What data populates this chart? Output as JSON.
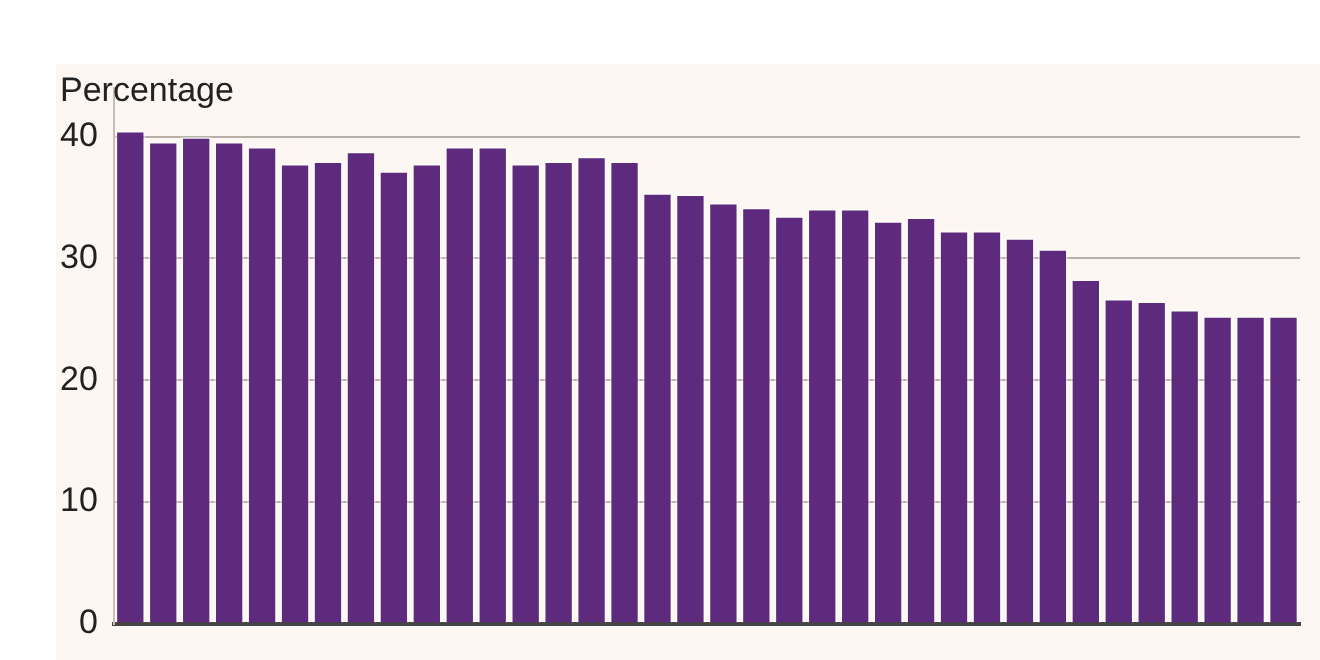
{
  "chart_data": {
    "type": "bar",
    "ylabel": "Percentage",
    "categories": [
      null,
      null,
      null,
      null,
      null,
      null,
      null,
      null,
      null,
      null,
      null,
      null,
      null,
      null,
      null,
      null,
      null,
      null,
      null,
      null,
      null,
      null,
      null,
      null,
      null,
      null,
      null,
      null,
      null,
      null,
      null,
      null,
      null,
      null,
      null,
      null
    ],
    "values": [
      40.5,
      39.6,
      40.0,
      39.6,
      39.2,
      37.8,
      38.0,
      38.8,
      37.2,
      37.8,
      39.2,
      39.2,
      37.8,
      38.0,
      38.4,
      38.0,
      35.4,
      35.3,
      34.6,
      34.2,
      33.5,
      34.1,
      34.1,
      33.1,
      33.4,
      32.3,
      32.3,
      31.7,
      30.8,
      28.3,
      26.7,
      26.5,
      25.8,
      25.3,
      25.3,
      25.3
    ],
    "color": "#5e2a7e",
    "ylim": [
      0,
      44
    ],
    "yticks": [
      0,
      10,
      20,
      30,
      40
    ],
    "grid": "y",
    "legend": false,
    "tick_labels": "y"
  }
}
